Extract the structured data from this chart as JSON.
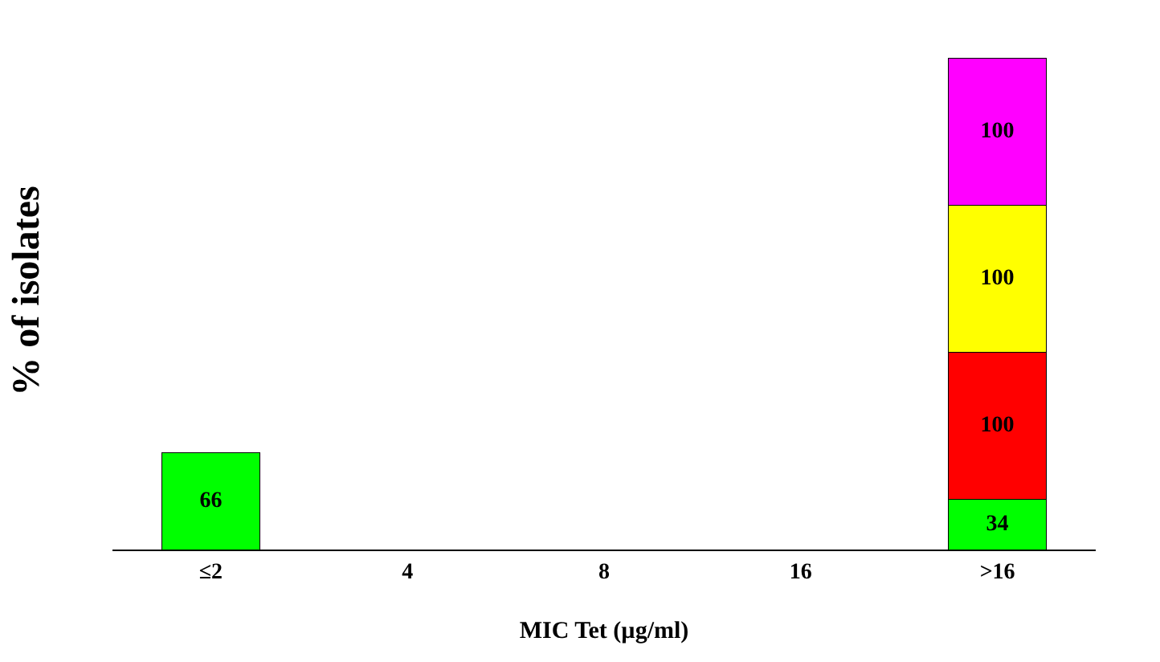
{
  "chart_data": {
    "type": "bar",
    "stacked": true,
    "xlabel": "MIC Tet (µg/ml)",
    "ylabel": "% of isolates",
    "categories": [
      "≤2",
      "4",
      "8",
      "16",
      ">16"
    ],
    "series": [
      {
        "color": "#00ff00",
        "values": [
          66,
          null,
          null,
          null,
          34
        ]
      },
      {
        "color": "#ff0000",
        "values": [
          null,
          null,
          null,
          null,
          100
        ]
      },
      {
        "color": "#ffff00",
        "values": [
          null,
          null,
          null,
          null,
          100
        ]
      },
      {
        "color": "#ff00ff",
        "values": [
          null,
          null,
          null,
          null,
          100
        ]
      }
    ],
    "data_labels": true,
    "tick_labels": "x"
  }
}
